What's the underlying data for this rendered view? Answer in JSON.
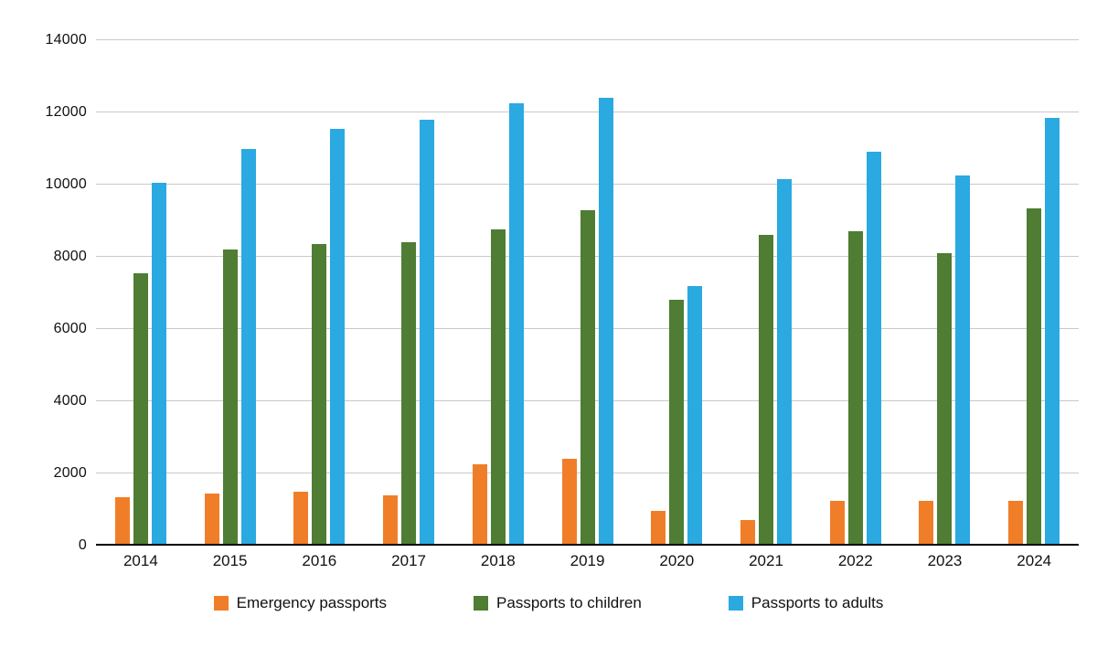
{
  "chart_data": {
    "type": "bar",
    "title": "",
    "xlabel": "",
    "ylabel": "",
    "categories": [
      "2014",
      "2015",
      "2016",
      "2017",
      "2018",
      "2019",
      "2020",
      "2021",
      "2022",
      "2023",
      "2024"
    ],
    "series": [
      {
        "name": "Emergency passports",
        "color": "#F07E28",
        "values": [
          1350,
          1450,
          1500,
          1400,
          2250,
          2400,
          950,
          700,
          1250,
          1250,
          1250
        ]
      },
      {
        "name": "Passports to children",
        "color": "#4E7D33",
        "values": [
          7550,
          8200,
          8350,
          8400,
          8750,
          9300,
          6800,
          8600,
          8700,
          8100,
          9350
        ]
      },
      {
        "name": "Passports to adults",
        "color": "#2BA9E1",
        "values": [
          10050,
          11000,
          11550,
          11800,
          12250,
          12400,
          7200,
          10150,
          10900,
          10250,
          11850
        ]
      }
    ],
    "ylim": [
      0,
      14000
    ],
    "ytick_step": 2000,
    "ytick_labels": [
      "0",
      "2000",
      "4000",
      "6000",
      "8000",
      "10000",
      "12000",
      "14000"
    ],
    "grid": true,
    "gridline_color": "#c9c9c9",
    "axis_line_color": "#000000",
    "legend_position": "bottom"
  }
}
